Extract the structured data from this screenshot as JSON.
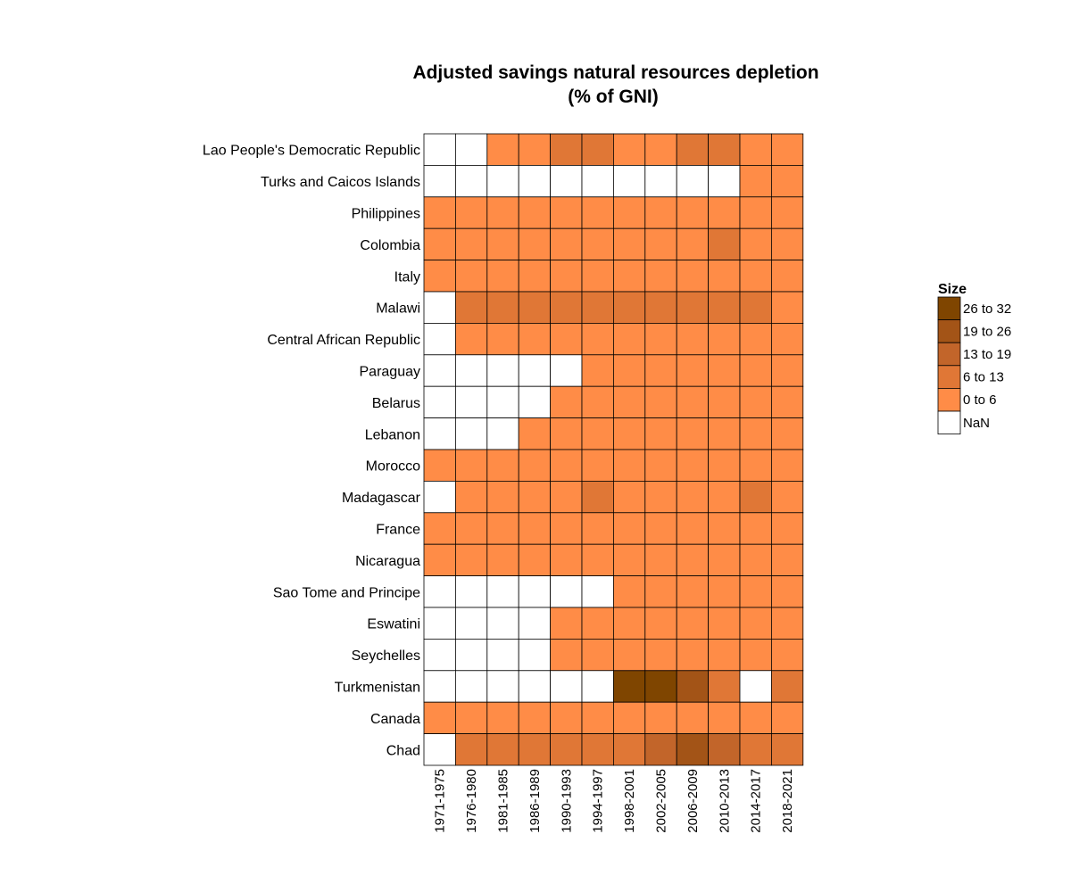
{
  "chart_data": {
    "type": "heatmap",
    "title": "Adjusted savings natural resources depletion",
    "subtitle": "(% of GNI)",
    "x": [
      "1971-1975",
      "1976-1980",
      "1981-1985",
      "1986-1989",
      "1990-1993",
      "1994-1997",
      "1998-2001",
      "2002-2005",
      "2006-2009",
      "2010-2013",
      "2014-2017",
      "2018-2021"
    ],
    "y": [
      "Lao People's Democratic Republic",
      "Turks and Caicos Islands",
      "Philippines",
      "Colombia",
      "Italy",
      "Malawi",
      "Central African Republic",
      "Paraguay",
      "Belarus",
      "Lebanon",
      "Morocco",
      "Madagascar",
      "France",
      "Nicaragua",
      "Sao Tome and Principe",
      "Eswatini",
      "Seychelles",
      "Turkmenistan",
      "Canada",
      "Chad"
    ],
    "values": [
      [
        null,
        null,
        3,
        3,
        8,
        8,
        4,
        4,
        8,
        8,
        4,
        4
      ],
      [
        null,
        null,
        null,
        null,
        null,
        null,
        null,
        null,
        null,
        null,
        1,
        1
      ],
      [
        2,
        2,
        2,
        2,
        2,
        2,
        2,
        2,
        2,
        2,
        2,
        2
      ],
      [
        3,
        3,
        3,
        3,
        3,
        3,
        3,
        3,
        3,
        7,
        3,
        3
      ],
      [
        1,
        1,
        1,
        1,
        1,
        1,
        1,
        1,
        1,
        1,
        1,
        1
      ],
      [
        null,
        8,
        8,
        8,
        8,
        8,
        8,
        8,
        8,
        8,
        7,
        5
      ],
      [
        null,
        3,
        3,
        3,
        3,
        2,
        2,
        2,
        2,
        2,
        2,
        2
      ],
      [
        null,
        null,
        null,
        null,
        null,
        2,
        2,
        2,
        2,
        2,
        2,
        2
      ],
      [
        null,
        null,
        null,
        null,
        1,
        1,
        1,
        1,
        1,
        1,
        1,
        1
      ],
      [
        null,
        null,
        null,
        1,
        1,
        1,
        1,
        1,
        1,
        1,
        1,
        1
      ],
      [
        2,
        2,
        2,
        2,
        2,
        2,
        2,
        2,
        2,
        2,
        2,
        2
      ],
      [
        null,
        4,
        4,
        4,
        4,
        7,
        4,
        4,
        4,
        4,
        7,
        4
      ],
      [
        1,
        1,
        1,
        1,
        1,
        1,
        1,
        1,
        1,
        1,
        1,
        1
      ],
      [
        3,
        3,
        3,
        3,
        3,
        3,
        3,
        3,
        3,
        3,
        3,
        3
      ],
      [
        null,
        null,
        null,
        null,
        null,
        null,
        3,
        3,
        3,
        3,
        3,
        3
      ],
      [
        null,
        null,
        null,
        null,
        2,
        2,
        2,
        2,
        2,
        2,
        2,
        2
      ],
      [
        null,
        null,
        null,
        null,
        1,
        1,
        1,
        1,
        1,
        1,
        1,
        1
      ],
      [
        null,
        null,
        null,
        null,
        null,
        null,
        28,
        28,
        22,
        10,
        null,
        10
      ],
      [
        3,
        3,
        3,
        3,
        3,
        3,
        3,
        3,
        3,
        3,
        3,
        3
      ],
      [
        null,
        9,
        10,
        10,
        10,
        10,
        11,
        14,
        20,
        15,
        11,
        10
      ]
    ],
    "legend": {
      "title": "Size",
      "placement": "right",
      "bins": [
        {
          "label": "26 to 32",
          "min": 26,
          "max": 32,
          "color": "#7f4500"
        },
        {
          "label": "19 to 26",
          "min": 19,
          "max": 26,
          "color": "#a35417"
        },
        {
          "label": "13 to 19",
          "min": 13,
          "max": 19,
          "color": "#c2652a"
        },
        {
          "label": "6 to 13",
          "min": 6,
          "max": 13,
          "color": "#e07736"
        },
        {
          "label": "0 to 6",
          "min": 0,
          "max": 6,
          "color": "#ff8c47"
        },
        {
          "label": "NaN",
          "min": null,
          "max": null,
          "color": "#ffffff"
        }
      ]
    },
    "grid": true
  }
}
